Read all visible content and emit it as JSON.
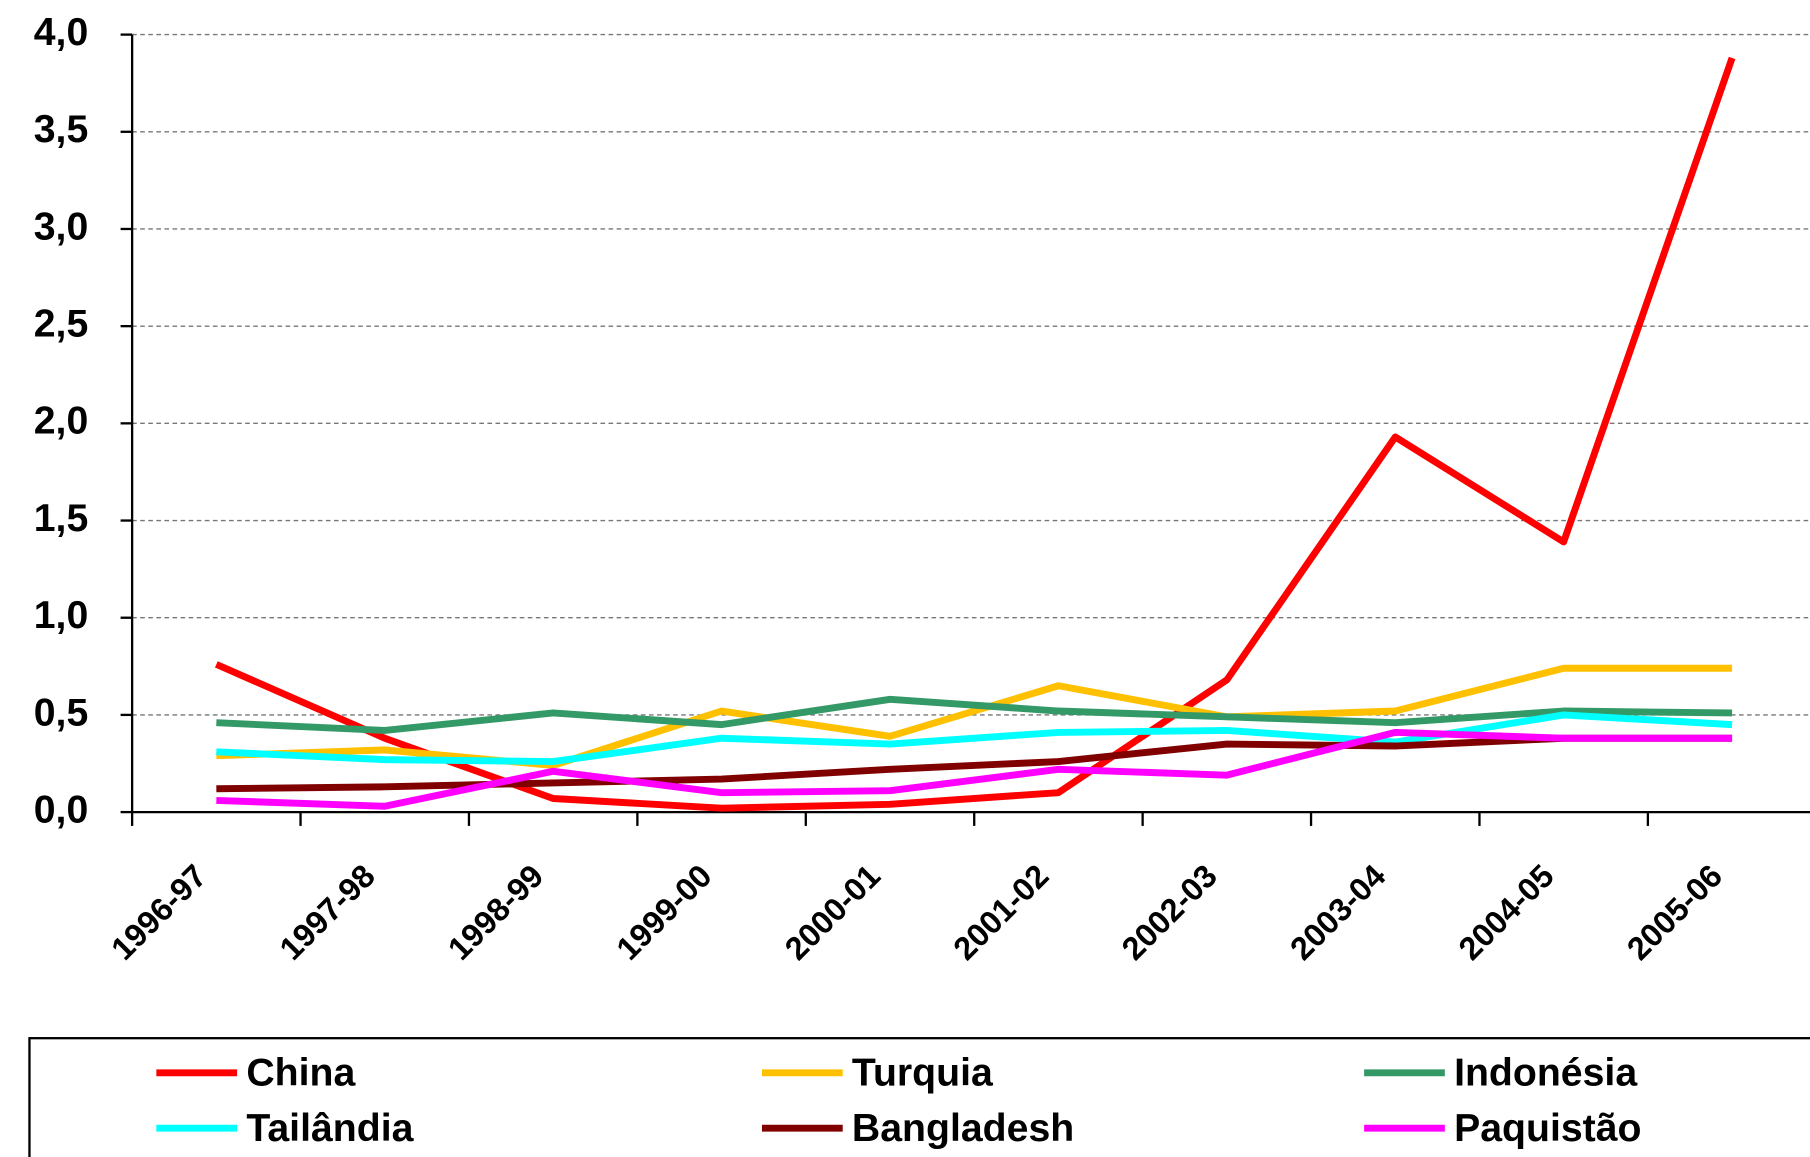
{
  "chart_data": {
    "type": "line",
    "categories": [
      "1996-97",
      "1997-98",
      "1998-99",
      "1999-00",
      "2000-01",
      "2001-02",
      "2002-03",
      "2003-04",
      "2004-05",
      "2005-06"
    ],
    "series": [
      {
        "name": "China",
        "color": "#ff0000",
        "values": [
          0.76,
          0.38,
          0.07,
          0.02,
          0.04,
          0.1,
          0.68,
          1.93,
          1.39,
          3.88
        ]
      },
      {
        "name": "Turquia",
        "color": "#ffc000",
        "values": [
          0.29,
          0.32,
          0.24,
          0.52,
          0.39,
          0.65,
          0.49,
          0.52,
          0.74,
          0.74
        ]
      },
      {
        "name": "Indonésia",
        "color": "#339966",
        "values": [
          0.46,
          0.42,
          0.51,
          0.45,
          0.58,
          0.52,
          0.49,
          0.46,
          0.52,
          0.51
        ]
      },
      {
        "name": "Tailândia",
        "color": "#00ffff",
        "values": [
          0.31,
          0.27,
          0.26,
          0.38,
          0.35,
          0.41,
          0.42,
          0.36,
          0.5,
          0.45
        ]
      },
      {
        "name": "Bangladesh",
        "color": "#800000",
        "values": [
          0.12,
          0.13,
          0.15,
          0.17,
          0.22,
          0.26,
          0.35,
          0.34,
          0.38,
          0.38
        ]
      },
      {
        "name": "Paquistão",
        "color": "#ff00ff",
        "values": [
          0.06,
          0.03,
          0.21,
          0.1,
          0.11,
          0.22,
          0.19,
          0.41,
          0.38,
          0.38
        ]
      }
    ],
    "ylim": [
      0,
      4
    ],
    "yticks": [
      {
        "value": 0,
        "label": "0,0"
      },
      {
        "value": 0.5,
        "label": "0,5"
      },
      {
        "value": 1,
        "label": "1,0"
      },
      {
        "value": 1.5,
        "label": "1,5"
      },
      {
        "value": 2,
        "label": "2,0"
      },
      {
        "value": 2.5,
        "label": "2,5"
      },
      {
        "value": 3,
        "label": "3,0"
      },
      {
        "value": 3.5,
        "label": "3,5"
      },
      {
        "value": 4,
        "label": "4,0"
      }
    ],
    "grid": true,
    "legend": "bottom"
  }
}
